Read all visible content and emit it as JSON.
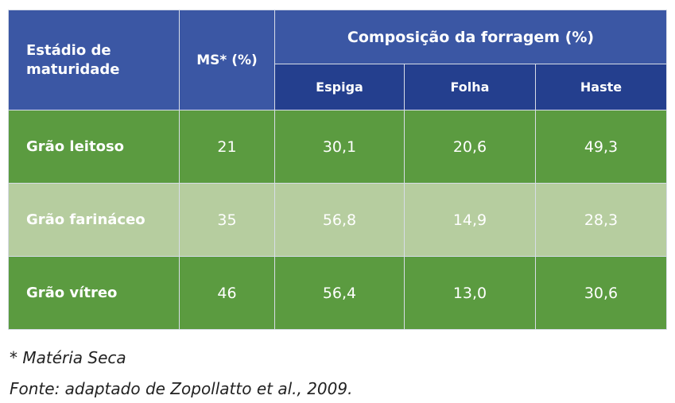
{
  "table": {
    "header": {
      "stage": "Estádio de maturidade",
      "ms": "MS* (%)",
      "group": "Composição da forragem (%)",
      "sub": [
        "Espiga",
        "Folha",
        "Haste"
      ]
    },
    "rows": [
      [
        "Grão leitoso",
        "21",
        "30,1",
        "20,6",
        "49,3"
      ],
      [
        "Grão farináceo",
        "35",
        "56,8",
        "14,9",
        "28,3"
      ],
      [
        "Grão vítreo",
        "46",
        "56,4",
        "13,0",
        "30,6"
      ]
    ]
  },
  "notes": [
    "* Matéria Seca",
    "Fonte: adaptado de Zopollatto et al., 2009."
  ]
}
